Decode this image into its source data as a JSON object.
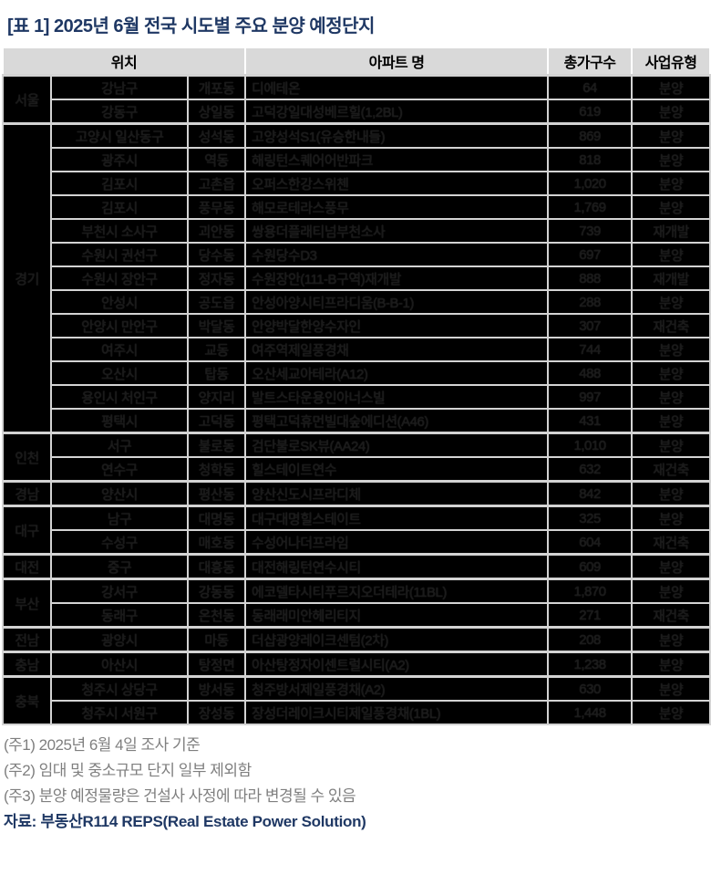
{
  "title": "[표 1] 2025년 6월 전국 시도별 주요 분양 예정단지",
  "colors": {
    "title_navy": "#1f3864",
    "header_bg": "#d9d9d9",
    "body_cell_bg": "#000000",
    "ghost_text": "#1a1a1a",
    "grid_line": "#d3d3d3",
    "note_gray": "#7f7f7f"
  },
  "table": {
    "headers": {
      "location": "위치",
      "apartment": "아파트 명",
      "households": "총가구수",
      "type": "사업유형"
    },
    "redacted": true,
    "groups": [
      {
        "region": "서울",
        "rows": [
          {
            "city": "강남구",
            "dong": "개포동",
            "name": "디에테온",
            "households": "64",
            "type": "분양"
          },
          {
            "city": "강동구",
            "dong": "상일동",
            "name": "고덕강일대성베르힐(1,2BL)",
            "households": "619",
            "type": "분양"
          }
        ]
      },
      {
        "region": "경기",
        "rows": [
          {
            "city": "고양시 일산동구",
            "dong": "성석동",
            "name": "고양성석S1(유승한내들)",
            "households": "869",
            "type": "분양"
          },
          {
            "city": "광주시",
            "dong": "역동",
            "name": "해링턴스퀘어어반파크",
            "households": "818",
            "type": "분양"
          },
          {
            "city": "김포시",
            "dong": "고촌읍",
            "name": "오퍼스한강스위첸",
            "households": "1,020",
            "type": "분양"
          },
          {
            "city": "김포시",
            "dong": "풍무동",
            "name": "해모로테라스풍무",
            "households": "1,769",
            "type": "분양"
          },
          {
            "city": "부천시 소사구",
            "dong": "괴안동",
            "name": "쌍용더플래티넘부천소사",
            "households": "739",
            "type": "재개발"
          },
          {
            "city": "수원시 권선구",
            "dong": "당수동",
            "name": "수원당수D3",
            "households": "697",
            "type": "분양"
          },
          {
            "city": "수원시 장안구",
            "dong": "정자동",
            "name": "수원장안(111-B구역)재개발",
            "households": "888",
            "type": "재개발"
          },
          {
            "city": "안성시",
            "dong": "공도읍",
            "name": "안성아양시티프라디움(B-B-1)",
            "households": "288",
            "type": "분양"
          },
          {
            "city": "안양시 만안구",
            "dong": "박달동",
            "name": "안양박달한양수자인",
            "households": "307",
            "type": "재건축"
          },
          {
            "city": "여주시",
            "dong": "교동",
            "name": "여주역제일풍경채",
            "households": "744",
            "type": "분양"
          },
          {
            "city": "오산시",
            "dong": "탑동",
            "name": "오산세교아테라(A12)",
            "households": "488",
            "type": "분양"
          },
          {
            "city": "용인시 처인구",
            "dong": "양지리",
            "name": "발트스타운용인아너스빌",
            "households": "997",
            "type": "분양"
          },
          {
            "city": "평택시",
            "dong": "고덕동",
            "name": "평택고덕휴먼빌대숲에디션(A46)",
            "households": "431",
            "type": "분양"
          }
        ]
      },
      {
        "region": "인천",
        "rows": [
          {
            "city": "서구",
            "dong": "불로동",
            "name": "검단불로SK뷰(AA24)",
            "households": "1,010",
            "type": "분양"
          },
          {
            "city": "연수구",
            "dong": "청학동",
            "name": "힐스테이트연수",
            "households": "632",
            "type": "재건축"
          }
        ]
      },
      {
        "region": "경남",
        "rows": [
          {
            "city": "양산시",
            "dong": "평산동",
            "name": "양산신도시프라디체",
            "households": "842",
            "type": "분양"
          }
        ]
      },
      {
        "region": "대구",
        "rows": [
          {
            "city": "남구",
            "dong": "대명동",
            "name": "대구대명힐스테이트",
            "households": "325",
            "type": "분양"
          },
          {
            "city": "수성구",
            "dong": "매호동",
            "name": "수성어나더프라임",
            "households": "604",
            "type": "재건축"
          }
        ]
      },
      {
        "region": "대전",
        "rows": [
          {
            "city": "중구",
            "dong": "대흥동",
            "name": "대전해링턴연수시티",
            "households": "609",
            "type": "분양"
          }
        ]
      },
      {
        "region": "부산",
        "rows": [
          {
            "city": "강서구",
            "dong": "강동동",
            "name": "에코델타시티푸르지오더테라(11BL)",
            "households": "1,870",
            "type": "분양"
          },
          {
            "city": "동래구",
            "dong": "온천동",
            "name": "동래래미안헤리티지",
            "households": "271",
            "type": "재건축"
          }
        ]
      },
      {
        "region": "전남",
        "rows": [
          {
            "city": "광양시",
            "dong": "마동",
            "name": "더샵광양레이크센텀(2차)",
            "households": "208",
            "type": "분양"
          }
        ]
      },
      {
        "region": "충남",
        "rows": [
          {
            "city": "아산시",
            "dong": "탕정면",
            "name": "아산탕정자이센트럴시티(A2)",
            "households": "1,238",
            "type": "분양"
          }
        ]
      },
      {
        "region": "충북",
        "rows": [
          {
            "city": "청주시 상당구",
            "dong": "방서동",
            "name": "청주방서제일풍경채(A2)",
            "households": "630",
            "type": "분양"
          },
          {
            "city": "청주시 서원구",
            "dong": "장성동",
            "name": "장성더레이크시티제일풍경채(1BL)",
            "households": "1,448",
            "type": "분양"
          }
        ]
      }
    ]
  },
  "notes": [
    "(주1) 2025년 6월 4일 조사 기준",
    "(주2) 임대 및 중소규모 단지 일부 제외함",
    "(주3) 분양 예정물량은 건설사 사정에 따라 변경될 수 있음"
  ],
  "source": "자료: 부동산R114 REPS(Real Estate Power Solution)"
}
